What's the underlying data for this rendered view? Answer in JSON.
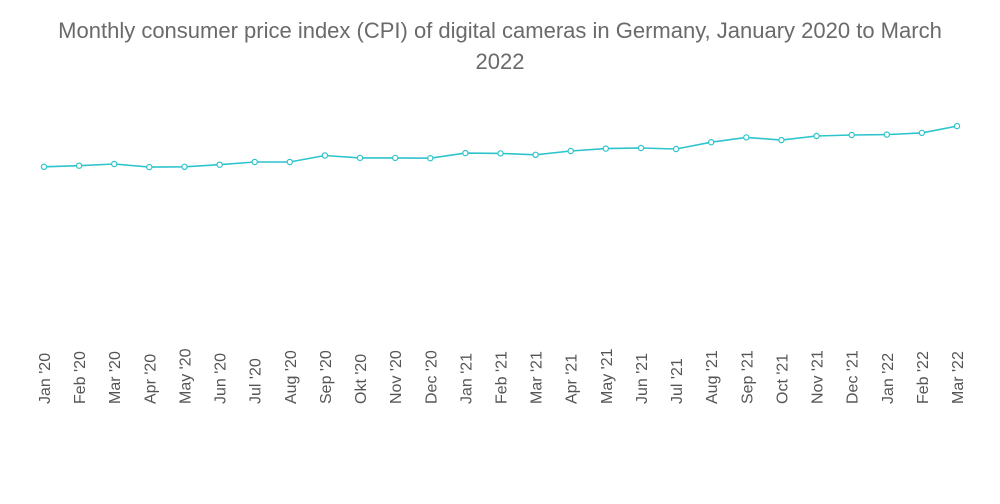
{
  "chart_data": {
    "type": "line",
    "title": "Monthly consumer price index (CPI) of digital cameras in Germany, January 2020 to March 2022",
    "xlabel": "",
    "ylabel": "",
    "ylim": [
      60,
      120
    ],
    "grid": false,
    "categories": [
      "Jan '20",
      "Feb '20",
      "Mar '20",
      "Apr '20",
      "May '20",
      "Jun '20",
      "Jul '20",
      "Aug '20",
      "Sep '20",
      "Okt '20",
      "Nov '20",
      "Dec '20",
      "Jan '21",
      "Feb '21",
      "Mar '21",
      "Apr '21",
      "May '21",
      "Jun '21",
      "Jul '21",
      "Aug '21",
      "Sep '21",
      "Oct '21",
      "Nov '21",
      "Dec '21",
      "Jan '22",
      "Feb '22",
      "Mar '22"
    ],
    "series": [
      {
        "name": "CPI",
        "color": "#2ec4cc",
        "values": [
          99.0,
          99.3,
          99.8,
          98.9,
          99.0,
          99.6,
          100.4,
          100.4,
          102.3,
          101.6,
          101.6,
          101.5,
          103.0,
          102.9,
          102.5,
          103.6,
          104.3,
          104.5,
          104.2,
          106.2,
          107.6,
          106.8,
          108.0,
          108.3,
          108.4,
          108.9,
          110.9
        ]
      }
    ]
  }
}
